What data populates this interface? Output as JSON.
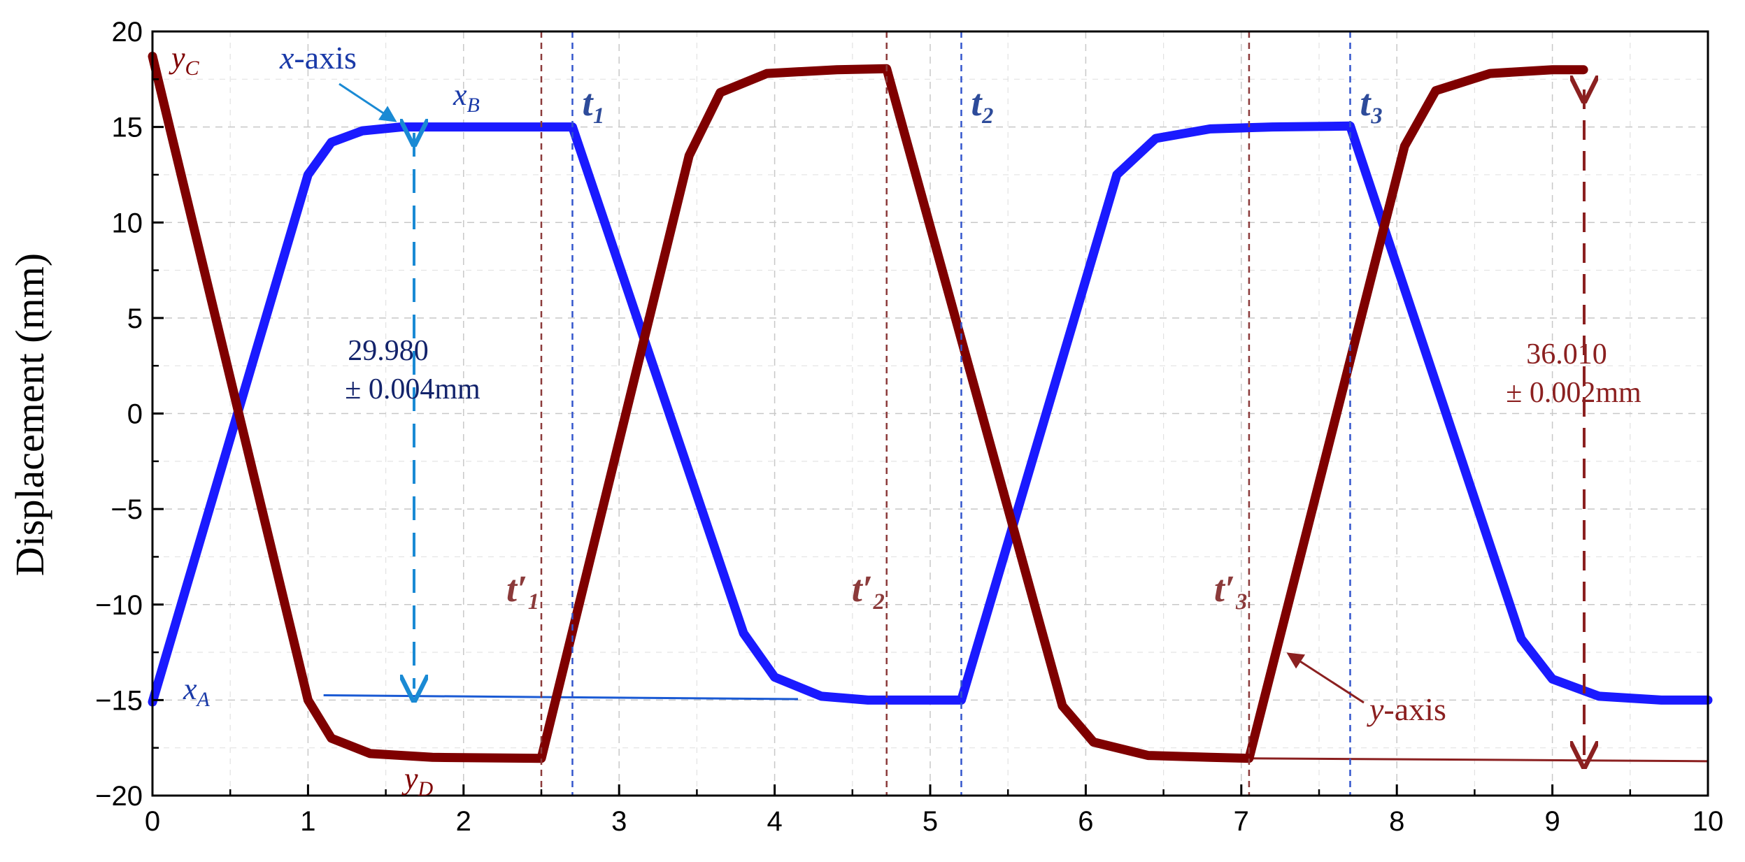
{
  "chart_data": {
    "type": "line",
    "title": "",
    "xlabel": "",
    "ylabel": "Displacement (mm)",
    "xlim": [
      0,
      10
    ],
    "ylim": [
      -20,
      20
    ],
    "x_ticks": [
      0,
      1,
      2,
      3,
      4,
      5,
      6,
      7,
      8,
      9,
      10
    ],
    "x_tick_labels": [
      "0",
      "1",
      "2",
      "3",
      "4",
      "5",
      "6",
      "7",
      "8",
      "9",
      "10"
    ],
    "y_ticks": [
      -20,
      -15,
      -10,
      -5,
      0,
      5,
      10,
      15,
      20
    ],
    "y_tick_labels": [
      "−20",
      "−15",
      "−10",
      "−5",
      "0",
      "5",
      "10",
      "15",
      "20"
    ],
    "grid": true,
    "series": [
      {
        "name": "x-axis",
        "color": "#1a1aff",
        "points": [
          [
            0,
            -15.1
          ],
          [
            1.0,
            12.5
          ],
          [
            1.15,
            14.2
          ],
          [
            1.35,
            14.8
          ],
          [
            1.6,
            15.0
          ],
          [
            2.7,
            15.0
          ],
          [
            3.8,
            -11.5
          ],
          [
            4.0,
            -13.8
          ],
          [
            4.3,
            -14.8
          ],
          [
            4.6,
            -15.0
          ],
          [
            5.2,
            -15.0
          ],
          [
            6.2,
            12.5
          ],
          [
            6.45,
            14.4
          ],
          [
            6.8,
            14.9
          ],
          [
            7.2,
            15.0
          ],
          [
            7.7,
            15.05
          ],
          [
            8.8,
            -11.8
          ],
          [
            9.0,
            -13.9
          ],
          [
            9.3,
            -14.8
          ],
          [
            9.7,
            -15.0
          ],
          [
            10.0,
            -15.0
          ]
        ]
      },
      {
        "name": "y-axis",
        "color": "#7f0000",
        "points": [
          [
            0,
            18.7
          ],
          [
            1.0,
            -15.0
          ],
          [
            1.15,
            -17.0
          ],
          [
            1.4,
            -17.8
          ],
          [
            1.8,
            -18.0
          ],
          [
            2.5,
            -18.05
          ],
          [
            3.45,
            13.5
          ],
          [
            3.65,
            16.8
          ],
          [
            3.95,
            17.8
          ],
          [
            4.4,
            18.0
          ],
          [
            4.72,
            18.05
          ],
          [
            5.85,
            -15.3
          ],
          [
            6.05,
            -17.2
          ],
          [
            6.4,
            -17.9
          ],
          [
            6.8,
            -18.0
          ],
          [
            7.05,
            -18.05
          ],
          [
            8.05,
            14.0
          ],
          [
            8.25,
            16.9
          ],
          [
            8.6,
            17.8
          ],
          [
            9.0,
            18.0
          ],
          [
            9.2,
            18.0
          ]
        ]
      }
    ],
    "vlines": [
      {
        "x": 2.5,
        "label": "t′₁",
        "color": "#8b3a3a"
      },
      {
        "x": 2.7,
        "label": "t₁",
        "color": "#3355cc"
      },
      {
        "x": 4.72,
        "label": "t′₂",
        "color": "#8b3a3a"
      },
      {
        "x": 5.2,
        "label": "t₂",
        "color": "#3355cc"
      },
      {
        "x": 7.05,
        "label": "t′₃",
        "color": "#8b3a3a"
      },
      {
        "x": 7.7,
        "label": "t₃",
        "color": "#3355cc"
      }
    ],
    "annotations": {
      "x_span_line1": "29.980",
      "x_span_line2": "± 0.004mm",
      "y_span_line1": "36.010",
      "y_span_line2": "± 0.002mm",
      "x_axis_label": "x-axis",
      "y_axis_label": "y-axis",
      "point_xA": "x",
      "point_xA_sub": "A",
      "point_xB": "x",
      "point_xB_sub": "B",
      "point_yC": "y",
      "point_yC_sub": "C",
      "point_yD": "y",
      "point_yD_sub": "D"
    }
  }
}
